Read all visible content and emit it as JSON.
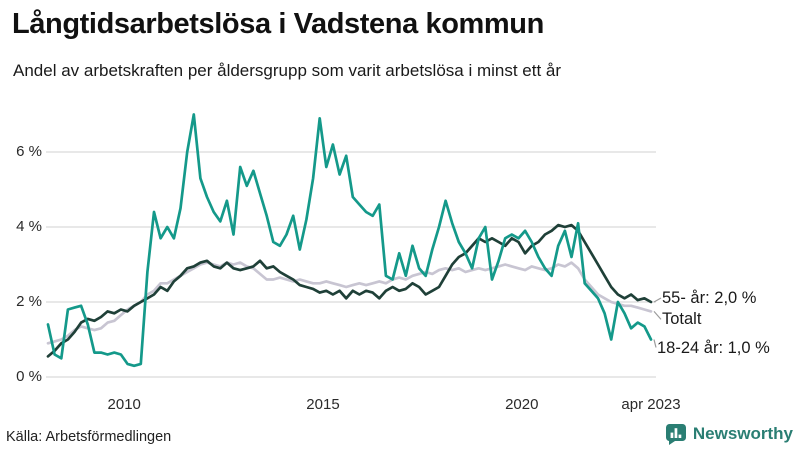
{
  "header": {
    "title": "Långtidsarbetslösa i Vadstena kommun",
    "subtitle": "Andel av arbetskraften per åldersgrupp som varit arbetslösa i minst ett år"
  },
  "chart_data": {
    "type": "line",
    "title": "Långtidsarbetslösa i Vadstena kommun",
    "subtitle": "Andel av arbetskraften per åldersgrupp som varit arbetslösa i minst ett år",
    "xlabel": "",
    "ylabel": "",
    "unit": "% av arbetskraften",
    "ylim": [
      0,
      7.2
    ],
    "grid": "horizontal",
    "legend_position": "end-of-line-labels",
    "y_axis": {
      "values": [
        0,
        2,
        4,
        6
      ],
      "ticks": [
        "0 %",
        "2 %",
        "4 %",
        "6 %"
      ]
    },
    "x_axis": {
      "ticks": [
        "2010",
        "2015",
        "2020",
        "apr 2023"
      ],
      "tick_months": [
        23,
        83,
        143,
        182
      ],
      "start_month": "2008-02",
      "end_month": "2023-04"
    },
    "x_step_months": 2,
    "series": [
      {
        "name": "Totalt",
        "end_label": "Totalt",
        "end_value": 1.75,
        "color": "#c8c5d2",
        "values": [
          0.9,
          0.95,
          1.0,
          1.1,
          1.25,
          1.35,
          1.3,
          1.25,
          1.3,
          1.45,
          1.5,
          1.65,
          1.8,
          1.9,
          2.0,
          2.2,
          2.3,
          2.5,
          2.5,
          2.6,
          2.7,
          2.8,
          2.9,
          3.0,
          3.05,
          3.0,
          2.95,
          3.05,
          3.0,
          3.05,
          2.95,
          2.9,
          2.75,
          2.6,
          2.6,
          2.65,
          2.6,
          2.55,
          2.6,
          2.55,
          2.5,
          2.5,
          2.55,
          2.5,
          2.45,
          2.4,
          2.45,
          2.5,
          2.45,
          2.5,
          2.55,
          2.5,
          2.6,
          2.65,
          2.6,
          2.7,
          2.75,
          2.8,
          2.75,
          2.85,
          2.9,
          2.85,
          2.9,
          2.8,
          2.85,
          2.9,
          2.85,
          2.9,
          2.95,
          3.0,
          2.95,
          2.9,
          2.85,
          2.95,
          2.9,
          2.85,
          2.9,
          3.0,
          2.95,
          3.05,
          2.9,
          2.6,
          2.4,
          2.2,
          2.1,
          2.0,
          1.95,
          1.9,
          1.9,
          1.85,
          1.8,
          1.75
        ]
      },
      {
        "name": "55- år",
        "end_label": "55- år: 2,0 %",
        "end_value": 2.0,
        "color": "#1f4038",
        "values": [
          0.55,
          0.7,
          0.9,
          1.0,
          1.2,
          1.45,
          1.55,
          1.5,
          1.6,
          1.75,
          1.7,
          1.8,
          1.75,
          1.9,
          2.0,
          2.1,
          2.2,
          2.4,
          2.3,
          2.55,
          2.7,
          2.9,
          2.95,
          3.05,
          3.1,
          2.95,
          2.9,
          3.05,
          2.9,
          2.85,
          2.9,
          2.95,
          3.1,
          2.9,
          2.95,
          2.8,
          2.7,
          2.6,
          2.45,
          2.4,
          2.35,
          2.25,
          2.3,
          2.2,
          2.3,
          2.1,
          2.3,
          2.2,
          2.3,
          2.25,
          2.1,
          2.3,
          2.4,
          2.3,
          2.35,
          2.5,
          2.4,
          2.2,
          2.3,
          2.4,
          2.7,
          3.0,
          3.2,
          3.3,
          3.5,
          3.7,
          3.6,
          3.7,
          3.6,
          3.5,
          3.7,
          3.6,
          3.3,
          3.5,
          3.6,
          3.8,
          3.9,
          4.05,
          4.0,
          4.05,
          3.9,
          3.6,
          3.3,
          3.0,
          2.7,
          2.4,
          2.2,
          2.1,
          2.2,
          2.05,
          2.1,
          2.0
        ]
      },
      {
        "name": "18-24 år",
        "end_label": "18-24 år: 1,0 %",
        "end_value": 1.0,
        "color": "#14998a",
        "values": [
          1.4,
          0.6,
          0.5,
          1.8,
          1.85,
          1.9,
          1.4,
          0.65,
          0.65,
          0.6,
          0.65,
          0.6,
          0.35,
          0.3,
          0.35,
          2.8,
          4.4,
          3.7,
          4.0,
          3.7,
          4.5,
          6.0,
          7.0,
          5.3,
          4.8,
          4.4,
          4.15,
          4.7,
          3.8,
          5.6,
          5.1,
          5.5,
          4.9,
          4.3,
          3.6,
          3.5,
          3.8,
          4.3,
          3.4,
          4.2,
          5.3,
          6.9,
          5.6,
          6.2,
          5.4,
          5.9,
          4.8,
          4.6,
          4.4,
          4.3,
          4.6,
          2.7,
          2.6,
          3.3,
          2.7,
          3.5,
          2.9,
          2.7,
          3.4,
          4.0,
          4.7,
          4.1,
          3.6,
          3.3,
          2.9,
          3.7,
          4.0,
          2.6,
          3.1,
          3.7,
          3.8,
          3.7,
          3.9,
          3.6,
          3.2,
          2.9,
          2.7,
          3.5,
          3.9,
          3.2,
          4.1,
          2.5,
          2.3,
          2.1,
          1.7,
          1.0,
          2.0,
          1.7,
          1.3,
          1.45,
          1.35,
          1.0
        ]
      }
    ],
    "colors": {
      "grid": "#dadada",
      "connector": "#9b9b9b",
      "axis_text": "#2a2a2a",
      "brand": "#2a7e73"
    }
  },
  "footer": {
    "source": "Källa: Arbetsförmedlingen",
    "brand": "Newsworthy"
  }
}
